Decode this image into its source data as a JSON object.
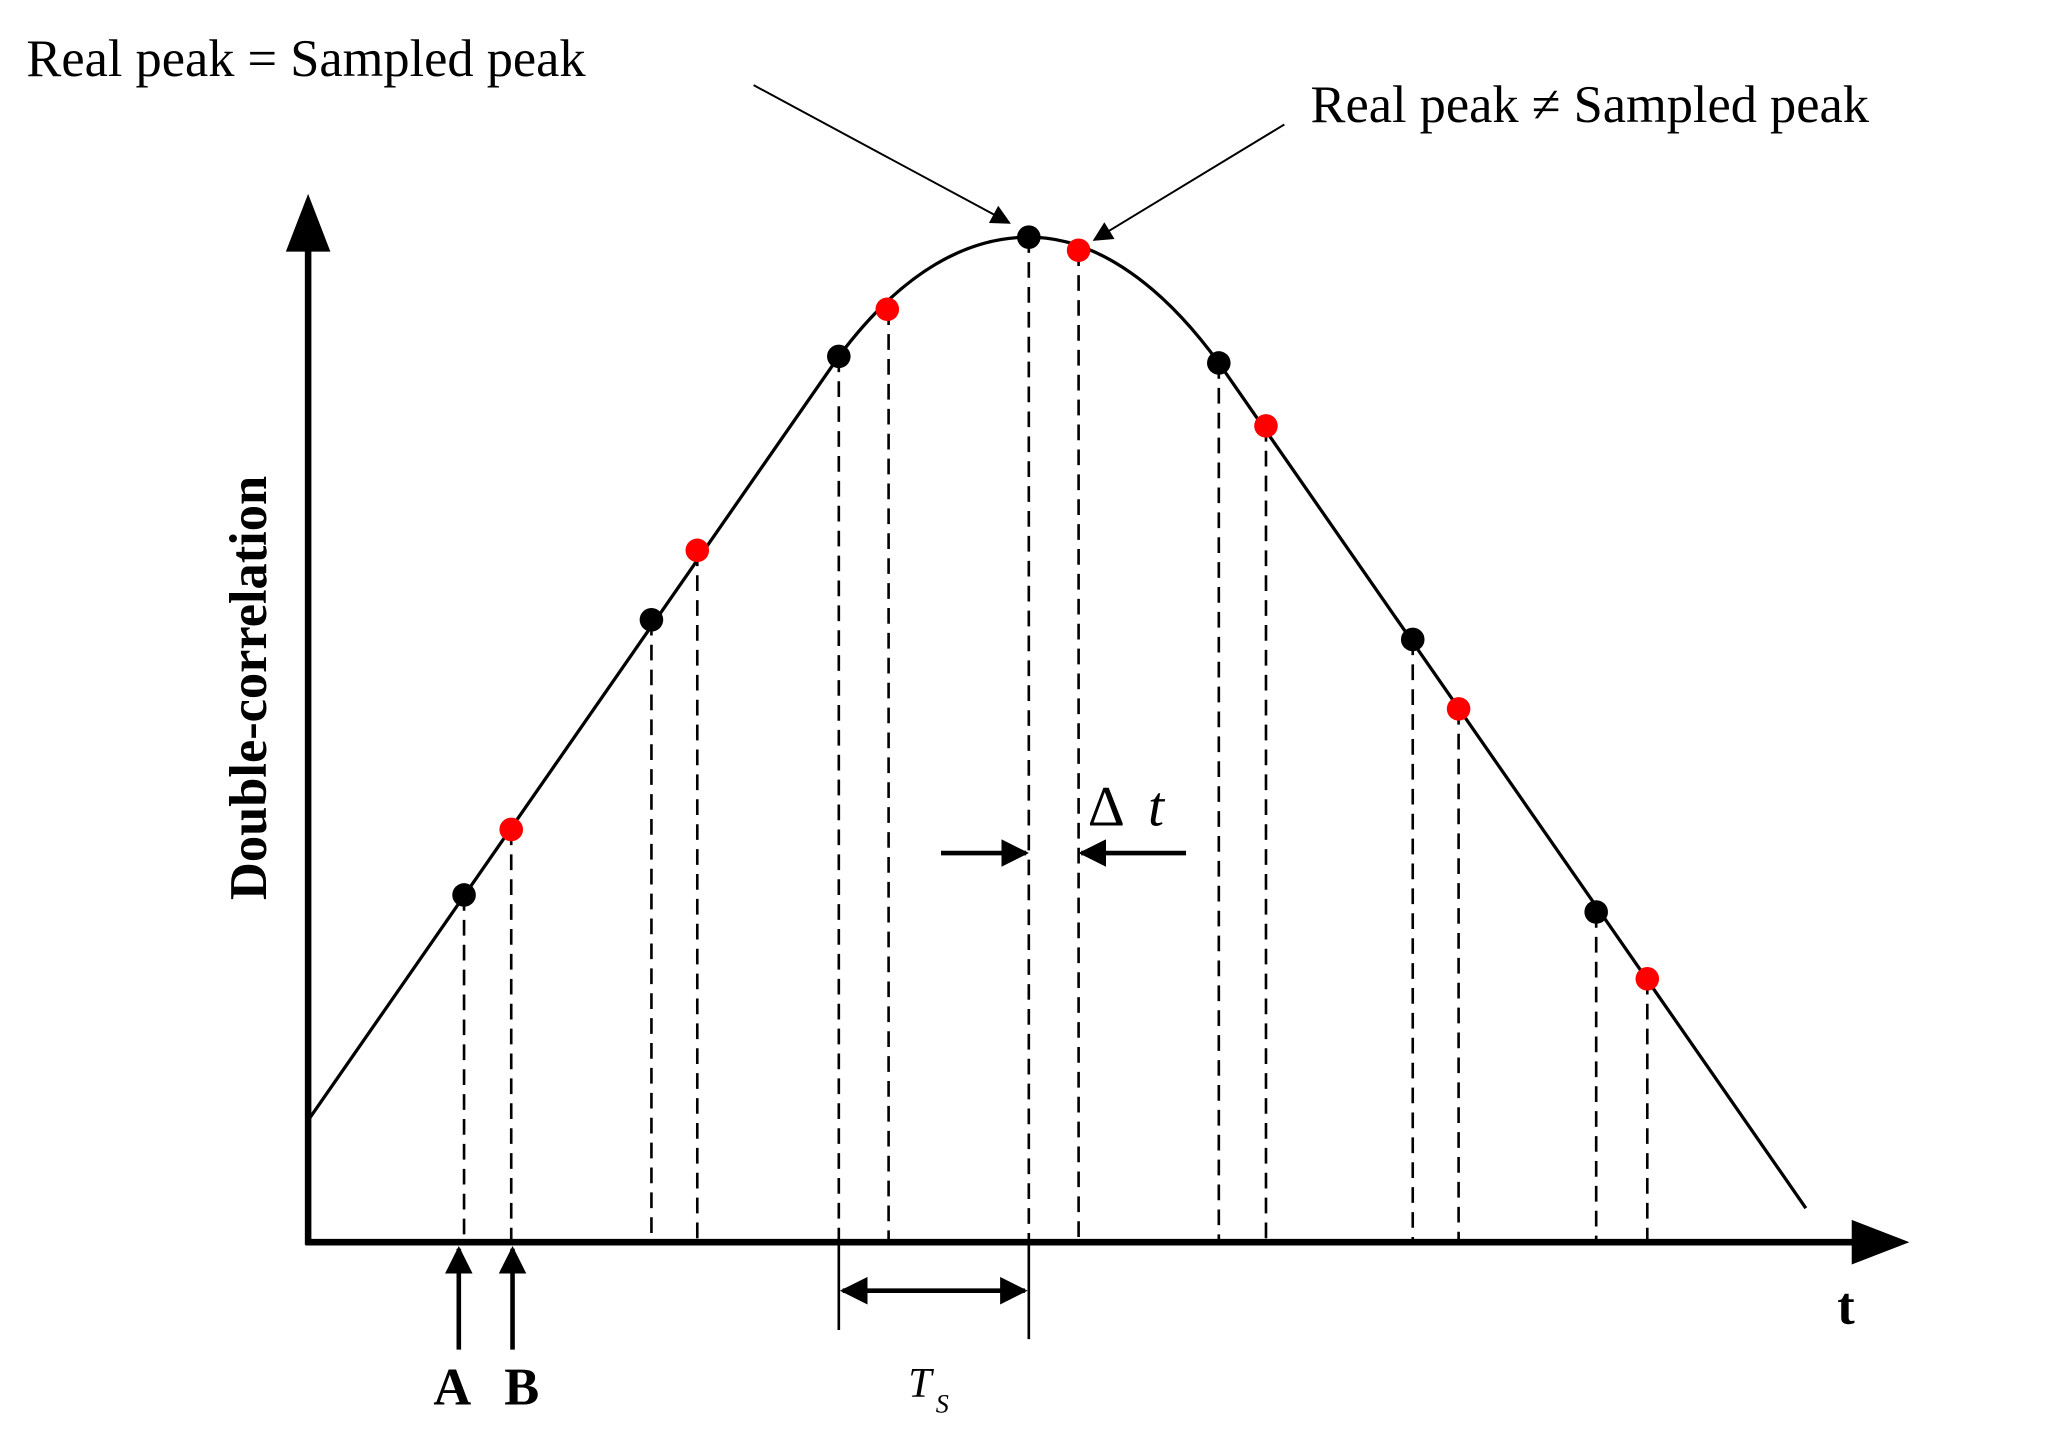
{
  "annotations": {
    "equal": "Real peak = Sampled peak",
    "not_equal": "Real peak ≠ Sampled peak"
  },
  "axes": {
    "y_label": "Double-correlation",
    "x_label": "t"
  },
  "delta": {
    "symbol": "Δ",
    "variable": "t"
  },
  "period": {
    "symbol": "T",
    "subscript": "S"
  },
  "points": {
    "a": "A",
    "b": "B"
  }
}
